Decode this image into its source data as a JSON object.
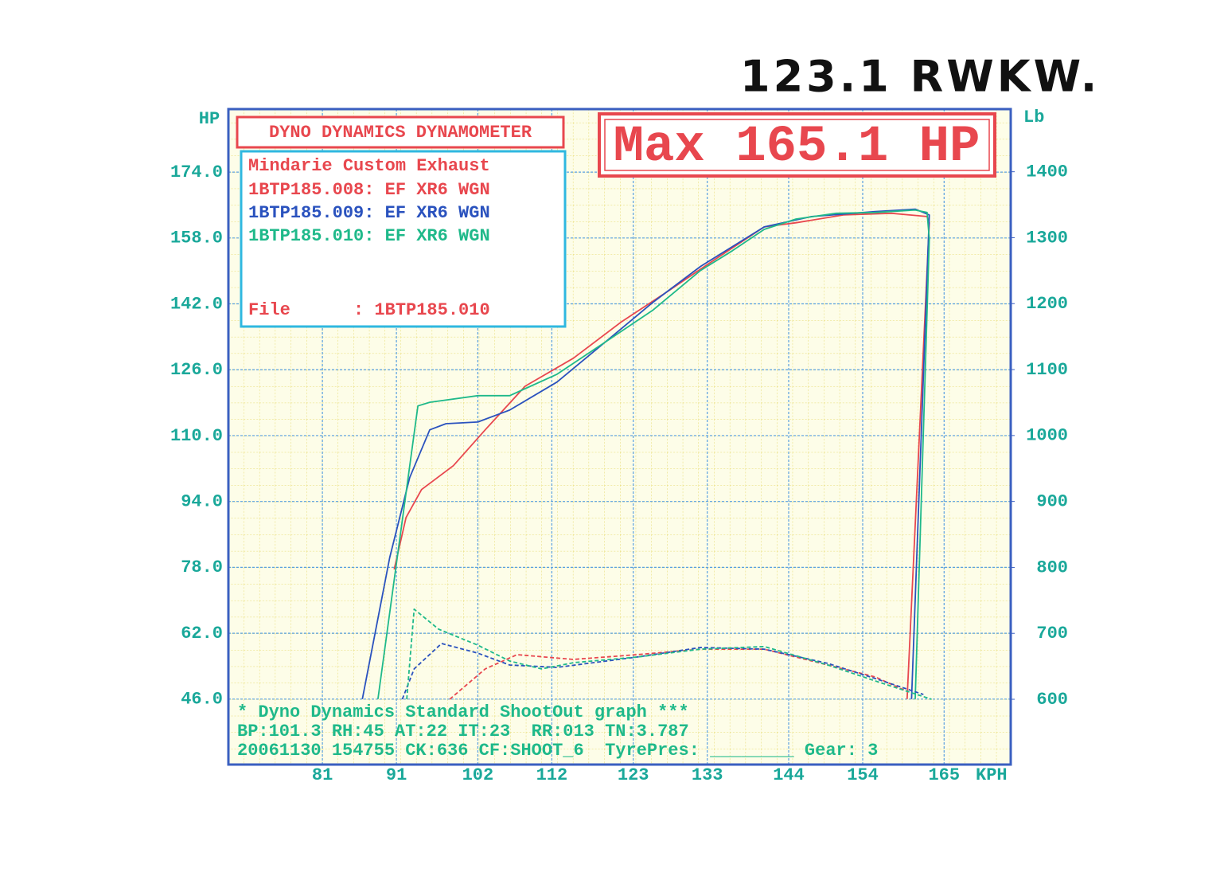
{
  "chart_data": {
    "type": "line",
    "annotation": "123.1 RWKW.",
    "title": "DYNO DYNAMICS DYNAMOMETER",
    "headline": "Max 165.1 HP",
    "subtitle": "Mindarie Custom Exhaust",
    "file_line": "File      : 1BTP185.010",
    "footer": [
      "* Dyno Dynamics Standard ShootOut graph ***",
      "BP:101.3 RH:45 AT:22 IT:23  RR:013 TN:3.787",
      "20061130 154755 CK:636 CF:SHOOT_6  TyrePres: ________ Gear: 3"
    ],
    "y_label": "HP",
    "y2_label": "Lb",
    "x_label": "KPH",
    "xlim": [
      68.3,
      174
    ],
    "ylim": [
      30.1,
      189.3
    ],
    "y2lim": [
      501,
      1495
    ],
    "xticks": [
      81,
      91,
      102,
      112,
      123,
      133,
      144,
      154,
      165
    ],
    "yticks": [
      {
        "value": 46,
        "label": "46.0"
      },
      {
        "value": 62,
        "label": "62.0"
      },
      {
        "value": 78,
        "label": "78.0"
      },
      {
        "value": 94,
        "label": "94.0"
      },
      {
        "value": 110,
        "label": "110.0"
      },
      {
        "value": 126,
        "label": "126.0"
      },
      {
        "value": 142,
        "label": "142.0"
      },
      {
        "value": 158,
        "label": "158.0"
      },
      {
        "value": 174,
        "label": "174.0"
      }
    ],
    "y2ticks": [
      600,
      700,
      800,
      900,
      1000,
      1100,
      1200,
      1300,
      1400
    ],
    "grid": true,
    "series": [
      {
        "name": "1BTP185.008: EF XR6 WGN",
        "color": "#e8474e",
        "x": [
          90.7,
          92.3,
          94.4,
          98.7,
          103,
          108.4,
          114.9,
          121.3,
          127.8,
          134.2,
          140.7,
          145,
          151.4,
          157.9,
          162.7,
          163,
          160
        ],
        "values": [
          77.5,
          90.1,
          96.9,
          102.7,
          111.4,
          122,
          128.8,
          137.5,
          145.2,
          153,
          160.7,
          161.7,
          163.6,
          164,
          163.2,
          161.7,
          46
        ]
      },
      {
        "name": "1BTP185.009: EF XR6 WGN",
        "color": "#2a52be",
        "x": [
          86.4,
          90.1,
          92.8,
          95.5,
          97.7,
          102,
          106.3,
          112.7,
          119.2,
          125.6,
          132.1,
          140.7,
          147.1,
          155.7,
          161.1,
          163,
          160.6
        ],
        "values": [
          46,
          80.4,
          99.8,
          111.4,
          112.9,
          113.3,
          116.2,
          123,
          132.7,
          142.3,
          151.1,
          160.7,
          163.2,
          164.4,
          165,
          163.6,
          46
        ]
      },
      {
        "name": "1BTP185.010: EF XR6 WGN",
        "color": "#1fb98a",
        "x": [
          88.5,
          93.9,
          95.5,
          102,
          106.3,
          108.4,
          112.7,
          119.2,
          125.6,
          132.1,
          136.4,
          140.7,
          145,
          150.4,
          155.7,
          161.1,
          162.7,
          163,
          161.1
        ],
        "values": [
          46,
          117.2,
          118.1,
          119.7,
          119.7,
          121.4,
          124.9,
          132.7,
          140.4,
          150.1,
          154.9,
          160.1,
          162.6,
          164,
          164.2,
          164.8,
          164.2,
          157.8,
          46
        ]
      },
      {
        "color": "#e8474e",
        "axis": "y2",
        "dash": true,
        "x": [
          98.2,
          103,
          107.3,
          114.9,
          123.5,
          132.1,
          140.7,
          149.3,
          155.7,
          160
        ],
        "values": [
          600,
          646,
          667.7,
          660.4,
          667.7,
          676,
          676,
          652,
          633.8,
          612
        ]
      },
      {
        "color": "#2a52be",
        "axis": "y2",
        "dash": true,
        "x": [
          91.8,
          93.4,
          97.1,
          102,
          106.3,
          112.7,
          123.5,
          132.1,
          140.7,
          149.3,
          155.7,
          162.2
        ],
        "values": [
          600,
          646,
          684.6,
          670,
          652,
          648.3,
          664,
          678.5,
          676,
          654.4,
          631.4,
          607.3
        ]
      },
      {
        "color": "#1fb98a",
        "axis": "y2",
        "dash": true,
        "x": [
          92.4,
          93.4,
          96.7,
          102,
          106.3,
          110.6,
          115,
          123.5,
          132.1,
          140.7,
          149.3,
          155.7,
          163.3
        ],
        "values": [
          600,
          736.6,
          706.3,
          682,
          658,
          646,
          655.6,
          664,
          676,
          680,
          652,
          627.8,
          600
        ]
      }
    ]
  }
}
